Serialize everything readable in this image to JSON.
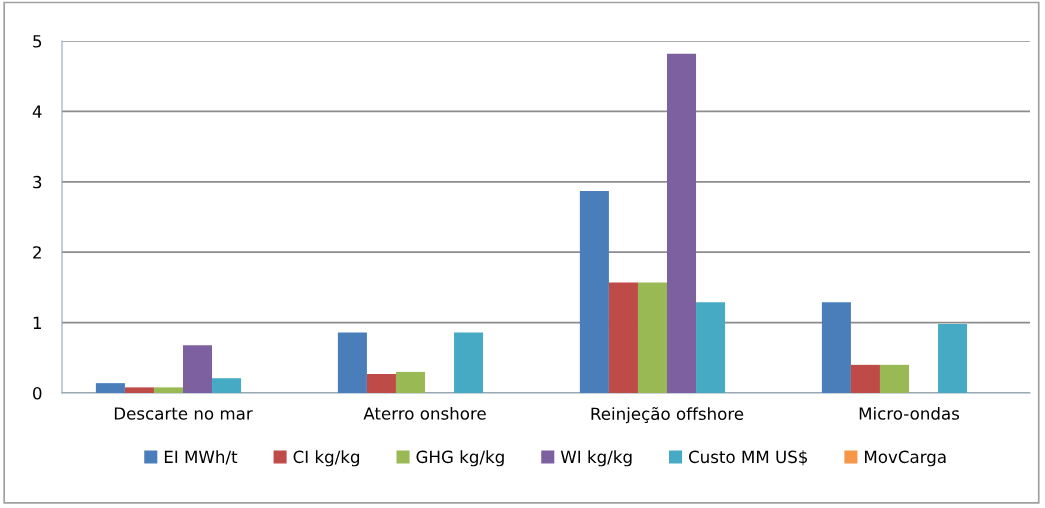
{
  "chart_data": {
    "type": "bar",
    "categories": [
      "Descarte no mar",
      "Aterro onshore",
      "Reinjeção offshore",
      "Micro-ondas"
    ],
    "series": [
      {
        "name": "EI MWh/t",
        "color": "#4a7ebb",
        "values": [
          0.14,
          0.86,
          2.87,
          1.29
        ]
      },
      {
        "name": "CI kg/kg",
        "color": "#be4b48",
        "values": [
          0.08,
          0.27,
          1.57,
          0.4
        ]
      },
      {
        "name": "GHG kg/kg",
        "color": "#98b954",
        "values": [
          0.08,
          0.3,
          1.57,
          0.4
        ]
      },
      {
        "name": "WI kg/kg",
        "color": "#7d60a0",
        "values": [
          0.68,
          null,
          4.82,
          null
        ]
      },
      {
        "name": "Custo MM US$",
        "color": "#46aac5",
        "values": [
          0.21,
          0.86,
          1.29,
          0.98
        ]
      },
      {
        "name": "MovCarga",
        "color": "#f79646",
        "values": [
          null,
          null,
          null,
          null
        ]
      }
    ],
    "ylim": [
      0,
      5
    ],
    "yticks": [
      0,
      1,
      2,
      3,
      4,
      5
    ],
    "grid": "y",
    "legend": "bottom"
  }
}
